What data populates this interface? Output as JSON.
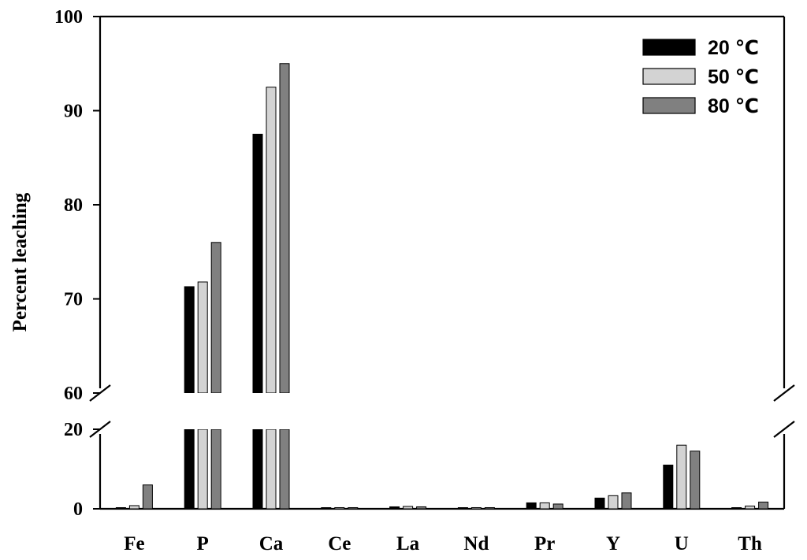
{
  "chart_data": {
    "type": "bar",
    "title": "",
    "xlabel": "",
    "ylabel": "Percent leaching",
    "categories": [
      "Fe",
      "P",
      "Ca",
      "Ce",
      "La",
      "Nd",
      "Pr",
      "Y",
      "U",
      "Th"
    ],
    "series": [
      {
        "name": "20 ℃",
        "color": "#000000",
        "values": [
          0,
          71.3,
          87.5,
          0.1,
          0.5,
          0.1,
          1.5,
          2.7,
          11.0,
          0.1
        ]
      },
      {
        "name": "50 ℃",
        "color": "#d3d3d3",
        "values": [
          0.8,
          71.8,
          92.5,
          0.3,
          0.6,
          0.3,
          1.5,
          3.3,
          16.0,
          0.7
        ]
      },
      {
        "name": "80 ℃",
        "color": "#808080",
        "values": [
          6.0,
          76.0,
          95.0,
          0.3,
          0.5,
          0.3,
          1.2,
          4.0,
          14.5,
          1.7
        ]
      }
    ],
    "axis_break": {
      "lower_range": [
        0,
        20
      ],
      "upper_range": [
        60,
        100
      ]
    },
    "lower_ticks": [
      0,
      20
    ],
    "upper_ticks": [
      60,
      70,
      80,
      90,
      100
    ],
    "lower_tick_labels": [
      "0",
      "20"
    ],
    "upper_tick_labels": [
      "60",
      "70",
      "80",
      "90",
      "100"
    ],
    "grid": false,
    "legend_position": "top-right"
  }
}
